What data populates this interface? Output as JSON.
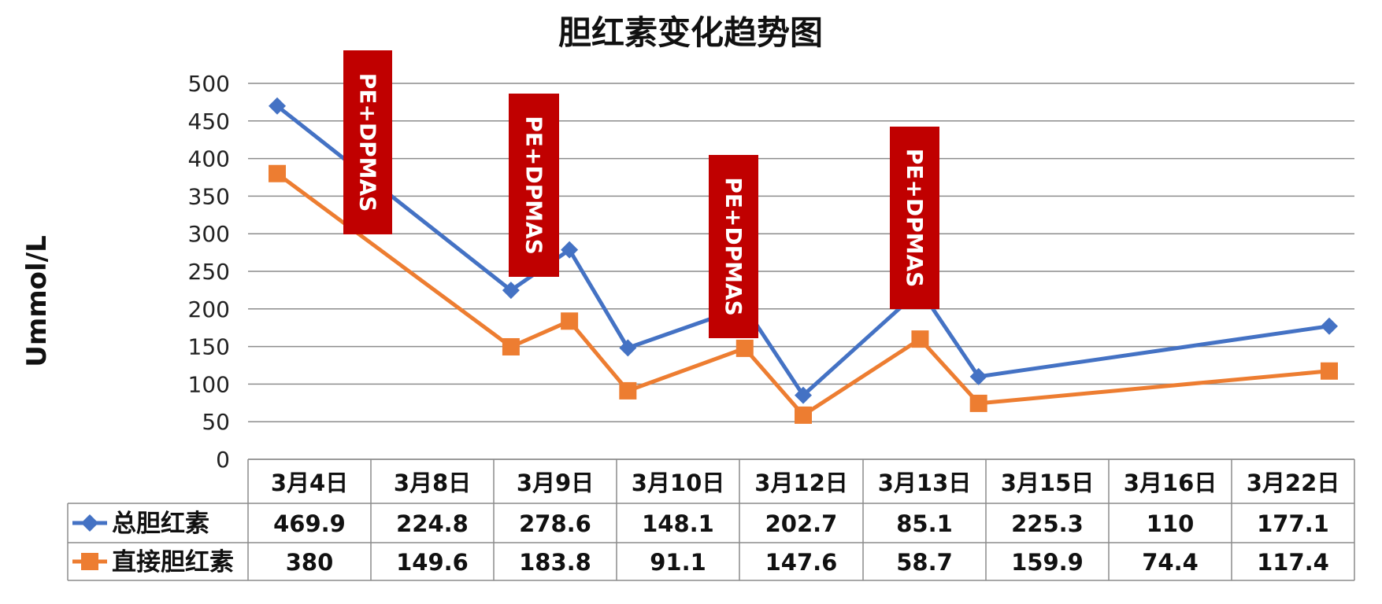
{
  "chart_data": {
    "type": "line",
    "title": "胆红素变化趋势图",
    "ylabel": "Ummol/L",
    "ylim": [
      0,
      500
    ],
    "yticks": [
      0,
      50,
      100,
      150,
      200,
      250,
      300,
      350,
      400,
      450,
      500
    ],
    "grid": true,
    "legend": "data-table-left",
    "categories": [
      "3月4日",
      "3月8日",
      "3月9日",
      "3月10日",
      "3月12日",
      "3月13日",
      "3月15日",
      "3月16日",
      "3月22日"
    ],
    "x_days": [
      4,
      8,
      9,
      10,
      12,
      13,
      15,
      16,
      22
    ],
    "series": [
      {
        "name": "总胆红素",
        "color": "#4472C4",
        "marker": "diamond",
        "values": [
          469.9,
          224.8,
          278.6,
          148.1,
          202.7,
          85.1,
          225.3,
          110,
          177.1
        ]
      },
      {
        "name": "直接胆红素",
        "color": "#ED7D31",
        "marker": "square",
        "values": [
          380,
          149.6,
          183.8,
          91.1,
          147.6,
          58.7,
          159.9,
          74.4,
          117.4
        ]
      }
    ],
    "annotations": [
      {
        "text": "PE+DPMAS",
        "color": "#C00000"
      },
      {
        "text": "PE+DPMAS",
        "color": "#C00000"
      },
      {
        "text": "PE+DPMAS",
        "color": "#C00000"
      },
      {
        "text": "PE+DPMAS",
        "color": "#C00000"
      }
    ]
  }
}
